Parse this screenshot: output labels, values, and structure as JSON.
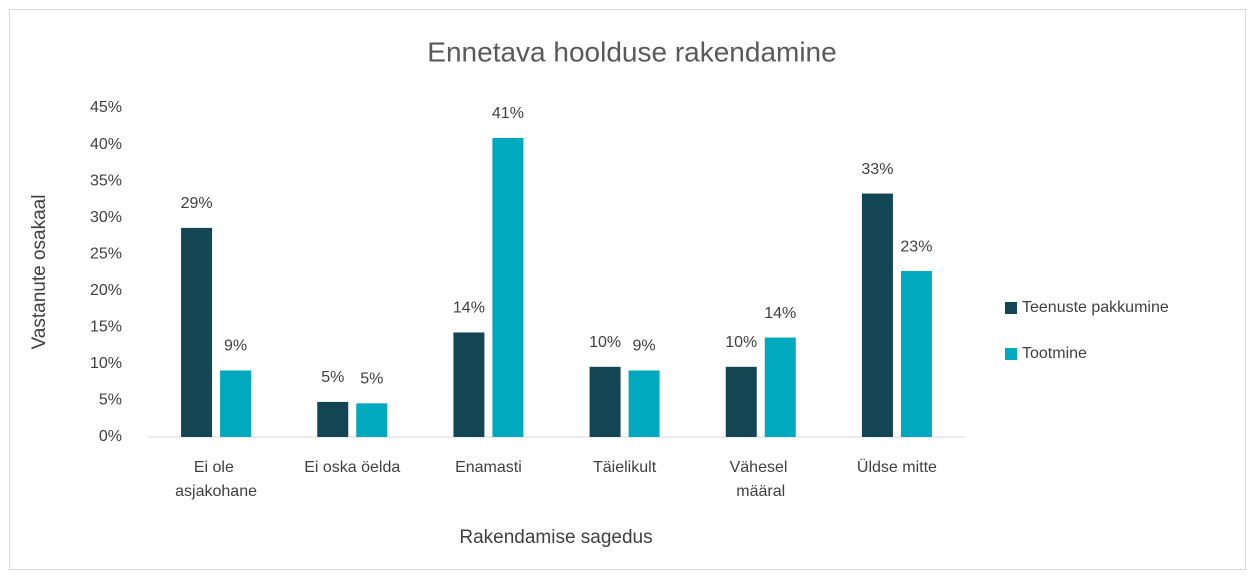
{
  "chart_data": {
    "type": "bar",
    "title": "Ennetava hoolduse rakendamine",
    "x_label": "Rakendamise sagedus",
    "y_label": "Vastanute osakaal",
    "categories": [
      "Ei ole asjakohane",
      "Ei oska öelda",
      "Enamasti",
      "Täielikult",
      "Vähesel määral",
      "Üldse mitte"
    ],
    "series": [
      {
        "name": "Teenuste pakkumine",
        "color": "#134652",
        "values": [
          28.6,
          4.8,
          14.3,
          9.6,
          9.6,
          33.3
        ],
        "value_labels": [
          "29%",
          "5%",
          "14%",
          "10%",
          "10%",
          "33%"
        ]
      },
      {
        "name": "Tootmine",
        "color": "#00a9bd",
        "values": [
          9.1,
          4.6,
          40.9,
          9.1,
          13.6,
          22.7
        ],
        "value_labels": [
          "9%",
          "5%",
          "41%",
          "9%",
          "14%",
          "23%"
        ]
      }
    ],
    "ylim": [
      0,
      45
    ],
    "yticks": [
      {
        "value": 0,
        "label": "0%"
      },
      {
        "value": 5,
        "label": "5%"
      },
      {
        "value": 10,
        "label": "10%"
      },
      {
        "value": 15,
        "label": "15%"
      },
      {
        "value": 20,
        "label": "20%"
      },
      {
        "value": 25,
        "label": "25%"
      },
      {
        "value": 30,
        "label": "30%"
      },
      {
        "value": 35,
        "label": "35%"
      },
      {
        "value": 40,
        "label": "40%"
      },
      {
        "value": 45,
        "label": "45%"
      }
    ],
    "grid": false,
    "legend": "right"
  }
}
